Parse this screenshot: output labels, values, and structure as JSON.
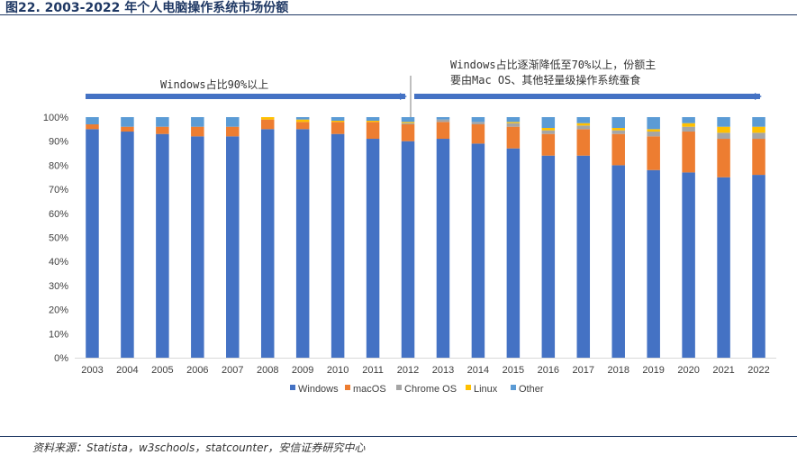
{
  "header": {
    "title": "图22. 2003-2022 年个人电脑操作系统市场份额"
  },
  "annotations": {
    "left": "Windows占比90%以上",
    "right_line1": "Windows占比逐渐降低至70%以上，份额主",
    "right_line2": "要由Mac OS、其他轻量级操作系统蚕食"
  },
  "source": "资料来源：Statista，w3schools，statcounter，安信证券研究中心",
  "colors": {
    "Windows": "#4472c4",
    "macOS": "#ed7d31",
    "Chrome OS": "#a5a5a5",
    "Linux": "#ffc000",
    "Other": "#5b9bd5",
    "arrow": "#4472c4"
  },
  "chart_data": {
    "type": "bar",
    "stacked": true,
    "categories": [
      "2003",
      "2004",
      "2005",
      "2006",
      "2007",
      "2008",
      "2009",
      "2010",
      "2011",
      "2012",
      "2013",
      "2014",
      "2015",
      "2016",
      "2017",
      "2018",
      "2019",
      "2020",
      "2021",
      "2022"
    ],
    "series": [
      {
        "name": "Windows",
        "values": [
          95,
          94,
          93,
          92,
          92,
          95,
          95,
          93,
          91,
          90,
          91,
          89,
          87,
          84,
          84,
          80,
          78,
          77,
          75,
          76
        ]
      },
      {
        "name": "macOS",
        "values": [
          2,
          2,
          3,
          4,
          4,
          4,
          3,
          5,
          7,
          7,
          7,
          8,
          9,
          9,
          11,
          13,
          14,
          17,
          16,
          15
        ]
      },
      {
        "name": "Chrome OS",
        "values": [
          0,
          0,
          0,
          0,
          0,
          0,
          0,
          0,
          0,
          0.5,
          1,
          1,
          1.5,
          1.5,
          1.5,
          1.5,
          2,
          2,
          2.5,
          2.5
        ]
      },
      {
        "name": "Linux",
        "values": [
          0,
          0,
          0,
          0,
          0,
          1,
          1,
          0.5,
          0.5,
          0.5,
          0,
          0,
          0.5,
          1,
          1,
          1,
          1,
          1.5,
          2.5,
          2.5
        ]
      },
      {
        "name": "Other",
        "values": [
          3,
          4,
          4,
          4,
          4,
          0,
          1,
          1.5,
          1.5,
          2,
          1,
          2,
          2,
          4.5,
          2.5,
          4.5,
          5,
          2.5,
          4,
          4
        ]
      }
    ],
    "yticks": [
      "0%",
      "10%",
      "20%",
      "30%",
      "40%",
      "50%",
      "60%",
      "70%",
      "80%",
      "90%",
      "100%"
    ],
    "ylim": [
      0,
      100
    ],
    "legend_position": "bottom",
    "grid": false
  }
}
